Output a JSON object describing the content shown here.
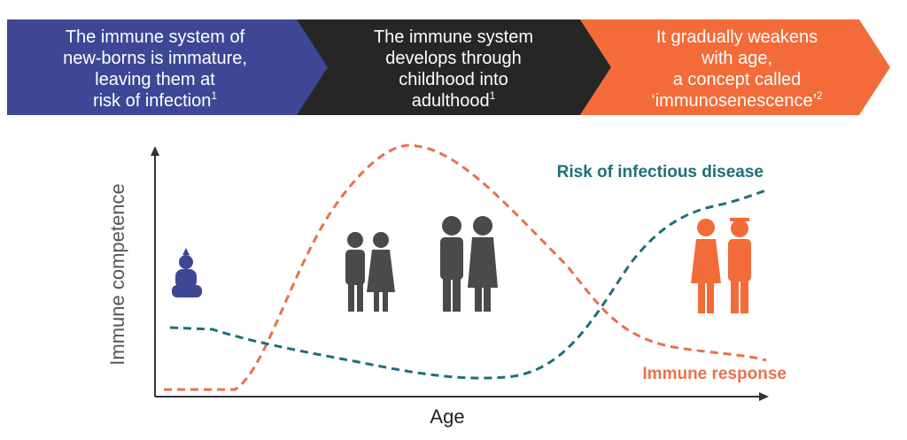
{
  "banners": [
    {
      "lines": [
        "The immune system of",
        "new-borns is immature,",
        "leaving them at",
        "risk of infection"
      ],
      "note": "1"
    },
    {
      "lines": [
        "The immune system",
        "develops through",
        "childhood into",
        "adulthood"
      ],
      "note": "1"
    },
    {
      "lines": [
        "It gradually weakens",
        "with age,",
        "a concept called",
        "‘immunosenescence’"
      ],
      "note": "2"
    }
  ],
  "axes": {
    "y_label": "Immune competence",
    "x_label": "Age"
  },
  "curves": [
    {
      "label": "Risk of infectious disease"
    },
    {
      "label": "Immune response"
    }
  ]
}
